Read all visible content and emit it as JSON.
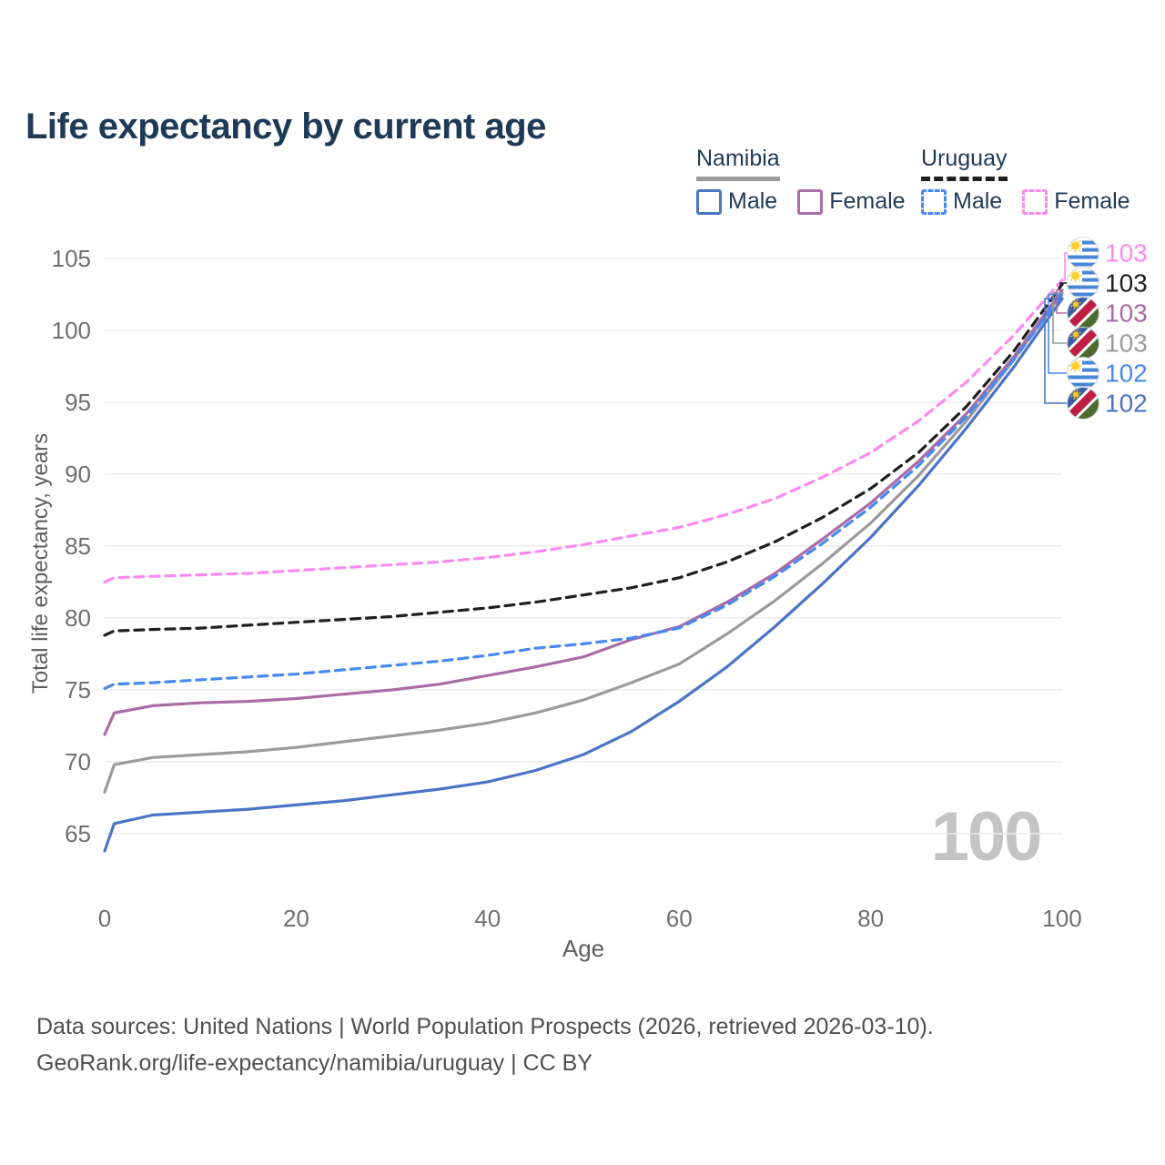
{
  "title": "Life expectancy by current age",
  "watermark": "100",
  "axes": {
    "x_label": "Age",
    "y_label": "Total life expectancy, years"
  },
  "legend": {
    "groups": [
      {
        "country": "Namibia",
        "line_style": "solid",
        "underline_color": "#9b9b9b",
        "items": [
          {
            "label": "Male",
            "color": "#4a74c4",
            "dashed": false
          },
          {
            "label": "Female",
            "color": "#a86ca6",
            "dashed": false
          }
        ]
      },
      {
        "country": "Uruguay",
        "line_style": "dashed",
        "underline_color": "#1f1f1f",
        "items": [
          {
            "label": "Male",
            "color": "#4789f2",
            "dashed": true
          },
          {
            "label": "Female",
            "color": "#fb8af0",
            "dashed": true
          }
        ]
      }
    ]
  },
  "footer": {
    "line1": "Data sources: United Nations | World Population Prospects (2026, retrieved 2026-03-10).",
    "line2": "GeoRank.org/life-expectancy/namibia/uruguay | CC BY"
  },
  "theme": {
    "title_color": "#1e3a56",
    "tick_color": "#6f6f6f",
    "axis_title_color": "#5e5e5e",
    "grid_color": "#ebebeb",
    "watermark_color": "#c4c4c4",
    "footer_color": "#4f4f4f"
  },
  "flags": {
    "uruguay": {
      "background": "#ffffff",
      "stripe": "#4886d5",
      "sun": "#fcd232"
    },
    "namibia": {
      "blue": "#3c5ea6",
      "red": "#bf1e44",
      "green": "#4c6b2f",
      "band_border": "#ffffff",
      "sun": "#f9c51d"
    }
  },
  "chart_data": {
    "type": "line",
    "title": "Life expectancy by current age",
    "xlabel": "Age",
    "ylabel": "Total life expectancy, years",
    "xlim": [
      0,
      100
    ],
    "ylim": [
      63,
      106
    ],
    "x_ticks": [
      0,
      20,
      40,
      60,
      80,
      100
    ],
    "y_ticks": [
      65,
      70,
      75,
      80,
      85,
      90,
      95,
      100,
      105
    ],
    "grid": "horizontal-only",
    "legend_position": "top-right",
    "ages": [
      0,
      1,
      5,
      10,
      15,
      20,
      25,
      30,
      35,
      40,
      45,
      50,
      55,
      60,
      65,
      70,
      75,
      80,
      85,
      90,
      95,
      100
    ],
    "series": [
      {
        "name": "Uruguay Female",
        "country": "Uruguay",
        "sex": "Female",
        "flag": "uruguay",
        "color": "#fb8af0",
        "dashed": true,
        "end_label": "103",
        "values": [
          82.5,
          82.8,
          82.9,
          83.0,
          83.1,
          83.3,
          83.5,
          83.7,
          83.9,
          84.2,
          84.6,
          85.1,
          85.7,
          86.3,
          87.2,
          88.3,
          89.8,
          91.5,
          93.7,
          96.4,
          99.7,
          103.5
        ]
      },
      {
        "name": "Uruguay Both sexes",
        "country": "Uruguay",
        "sex": "Both",
        "flag": "uruguay",
        "color": "#1f1f1f",
        "dashed": true,
        "end_label": "103",
        "values": [
          78.8,
          79.1,
          79.2,
          79.3,
          79.5,
          79.7,
          79.9,
          80.1,
          80.4,
          80.7,
          81.1,
          81.6,
          82.1,
          82.8,
          83.9,
          85.3,
          87.0,
          89.0,
          91.5,
          94.7,
          98.6,
          103.2
        ]
      },
      {
        "name": "Namibia Female",
        "country": "Namibia",
        "sex": "Female",
        "flag": "namibia",
        "color": "#a86ca6",
        "dashed": false,
        "end_label": "103",
        "values": [
          71.9,
          73.4,
          73.9,
          74.1,
          74.2,
          74.4,
          74.7,
          75.0,
          75.4,
          76.0,
          76.6,
          77.3,
          78.5,
          79.4,
          81.1,
          83.1,
          85.5,
          88.0,
          90.9,
          94.2,
          98.2,
          102.8
        ]
      },
      {
        "name": "Namibia Both sexes",
        "country": "Namibia",
        "sex": "Both",
        "flag": "namibia",
        "color": "#9b9b9b",
        "dashed": false,
        "end_label": "103",
        "values": [
          67.9,
          69.8,
          70.3,
          70.5,
          70.7,
          71.0,
          71.4,
          71.8,
          72.2,
          72.7,
          73.4,
          74.3,
          75.5,
          76.8,
          78.9,
          81.2,
          83.8,
          86.6,
          89.9,
          93.7,
          98.0,
          102.6
        ]
      },
      {
        "name": "Uruguay Male",
        "country": "Uruguay",
        "sex": "Male",
        "flag": "uruguay",
        "color": "#4789f2",
        "dashed": true,
        "end_label": "102",
        "values": [
          75.1,
          75.4,
          75.5,
          75.7,
          75.9,
          76.1,
          76.4,
          76.7,
          77.0,
          77.4,
          77.9,
          78.2,
          78.6,
          79.3,
          80.9,
          82.9,
          85.2,
          87.7,
          90.6,
          94.0,
          98.0,
          102.5
        ]
      },
      {
        "name": "Namibia Male",
        "country": "Namibia",
        "sex": "Male",
        "flag": "namibia",
        "color": "#4a74c4",
        "dashed": false,
        "end_label": "102",
        "values": [
          63.8,
          65.7,
          66.3,
          66.5,
          66.7,
          67.0,
          67.3,
          67.7,
          68.1,
          68.6,
          69.4,
          70.5,
          72.1,
          74.2,
          76.6,
          79.4,
          82.4,
          85.6,
          89.2,
          93.2,
          97.5,
          102.2
        ]
      }
    ]
  }
}
